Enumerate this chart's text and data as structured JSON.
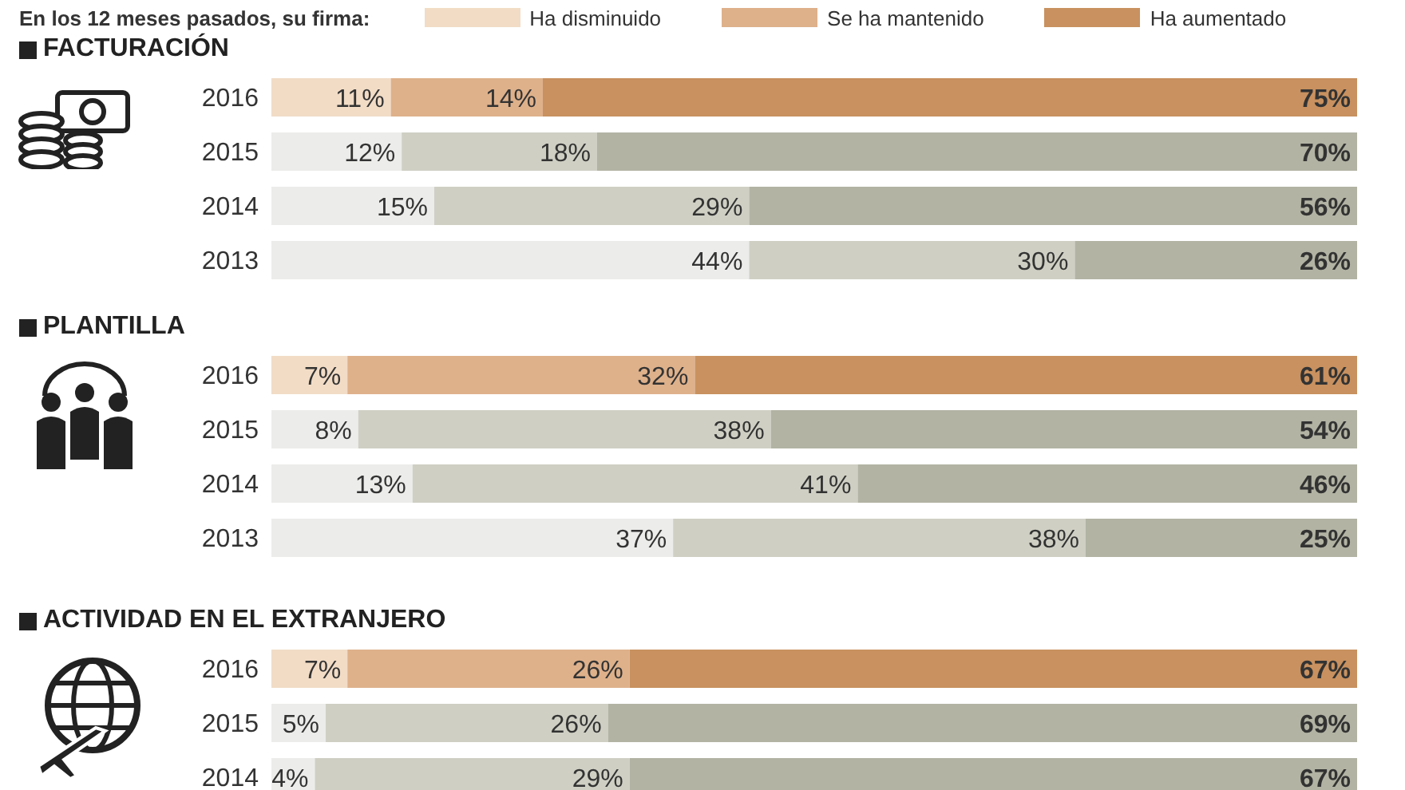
{
  "chart_data": [
    {
      "type": "bar",
      "orientation": "horizontal",
      "stacked": true,
      "subtitle": "En los 12 meses pasados, su firma:",
      "title": "FACTURACIÓN",
      "legend": "top",
      "categories": [
        "2016",
        "2015",
        "2014",
        "2013"
      ],
      "xlim": [
        0,
        100
      ],
      "tick_labels": "y",
      "series": [
        {
          "name": "Ha disminuido",
          "color": "#f2dcc6",
          "colors": [
            "#f2dcc6",
            "#ececea",
            "#ececea",
            "#ececea"
          ],
          "values": [
            11,
            12,
            15,
            44
          ],
          "value_labels": [
            "11%",
            "12%",
            "15%",
            "44%"
          ]
        },
        {
          "name": "Se ha mantenido",
          "color": "#deb18b",
          "colors": [
            "#deb18b",
            "#cfcfc4",
            "#cfcfc4",
            "#cfcfc4"
          ],
          "values": [
            14,
            18,
            29,
            30
          ],
          "value_labels": [
            "14%",
            "18%",
            "29%",
            "30%"
          ]
        },
        {
          "name": "Ha aumentado",
          "color": "#c8915f",
          "colors": [
            "#c8915f",
            "#b2b3a3",
            "#b2b3a3",
            "#b2b3a3"
          ],
          "values": [
            75,
            70,
            56,
            26
          ],
          "value_labels": [
            "75%",
            "70%",
            "56%",
            "26%"
          ]
        }
      ]
    },
    {
      "type": "bar",
      "orientation": "horizontal",
      "stacked": true,
      "title": "PLANTILLA",
      "categories": [
        "2016",
        "2015",
        "2014",
        "2013"
      ],
      "xlim": [
        0,
        100
      ],
      "tick_labels": "y",
      "series": [
        {
          "color": "#f2dcc6",
          "colors": [
            "#f2dcc6",
            "#ececea",
            "#ececea",
            "#ececea"
          ],
          "values": [
            7,
            8,
            13,
            37
          ],
          "value_labels": [
            "7%",
            "8%",
            "13%",
            "37%"
          ]
        },
        {
          "color": "#deb18b",
          "colors": [
            "#deb18b",
            "#cfcfc4",
            "#cfcfc4",
            "#cfcfc4"
          ],
          "values": [
            32,
            38,
            41,
            38
          ],
          "value_labels": [
            "32%",
            "38%",
            "41%",
            "38%"
          ]
        },
        {
          "color": "#c8915f",
          "colors": [
            "#c8915f",
            "#b2b3a3",
            "#b2b3a3",
            "#b2b3a3"
          ],
          "values": [
            61,
            54,
            46,
            25
          ],
          "value_labels": [
            "61%",
            "54%",
            "46%",
            "25%"
          ]
        }
      ]
    },
    {
      "type": "bar",
      "orientation": "horizontal",
      "stacked": true,
      "title": "ACTIVIDAD EN EL EXTRANJERO",
      "categories": [
        "2016",
        "2015",
        "2014"
      ],
      "xlim": [
        0,
        100
      ],
      "tick_labels": "y",
      "series": [
        {
          "color": "#f2dcc6",
          "colors": [
            "#f2dcc6",
            "#ececea",
            "#ececea"
          ],
          "values": [
            7,
            5,
            4
          ],
          "value_labels": [
            "7%",
            "5%",
            "4%"
          ]
        },
        {
          "color": "#deb18b",
          "colors": [
            "#deb18b",
            "#cfcfc4",
            "#cfcfc4"
          ],
          "values": [
            26,
            26,
            29
          ],
          "value_labels": [
            "26%",
            "26%",
            "29%"
          ]
        },
        {
          "color": "#c8915f",
          "colors": [
            "#c8915f",
            "#b2b3a3",
            "#b2b3a3"
          ],
          "values": [
            67,
            69,
            67
          ],
          "value_labels": [
            "67%",
            "69%",
            "67%"
          ]
        }
      ]
    }
  ]
}
